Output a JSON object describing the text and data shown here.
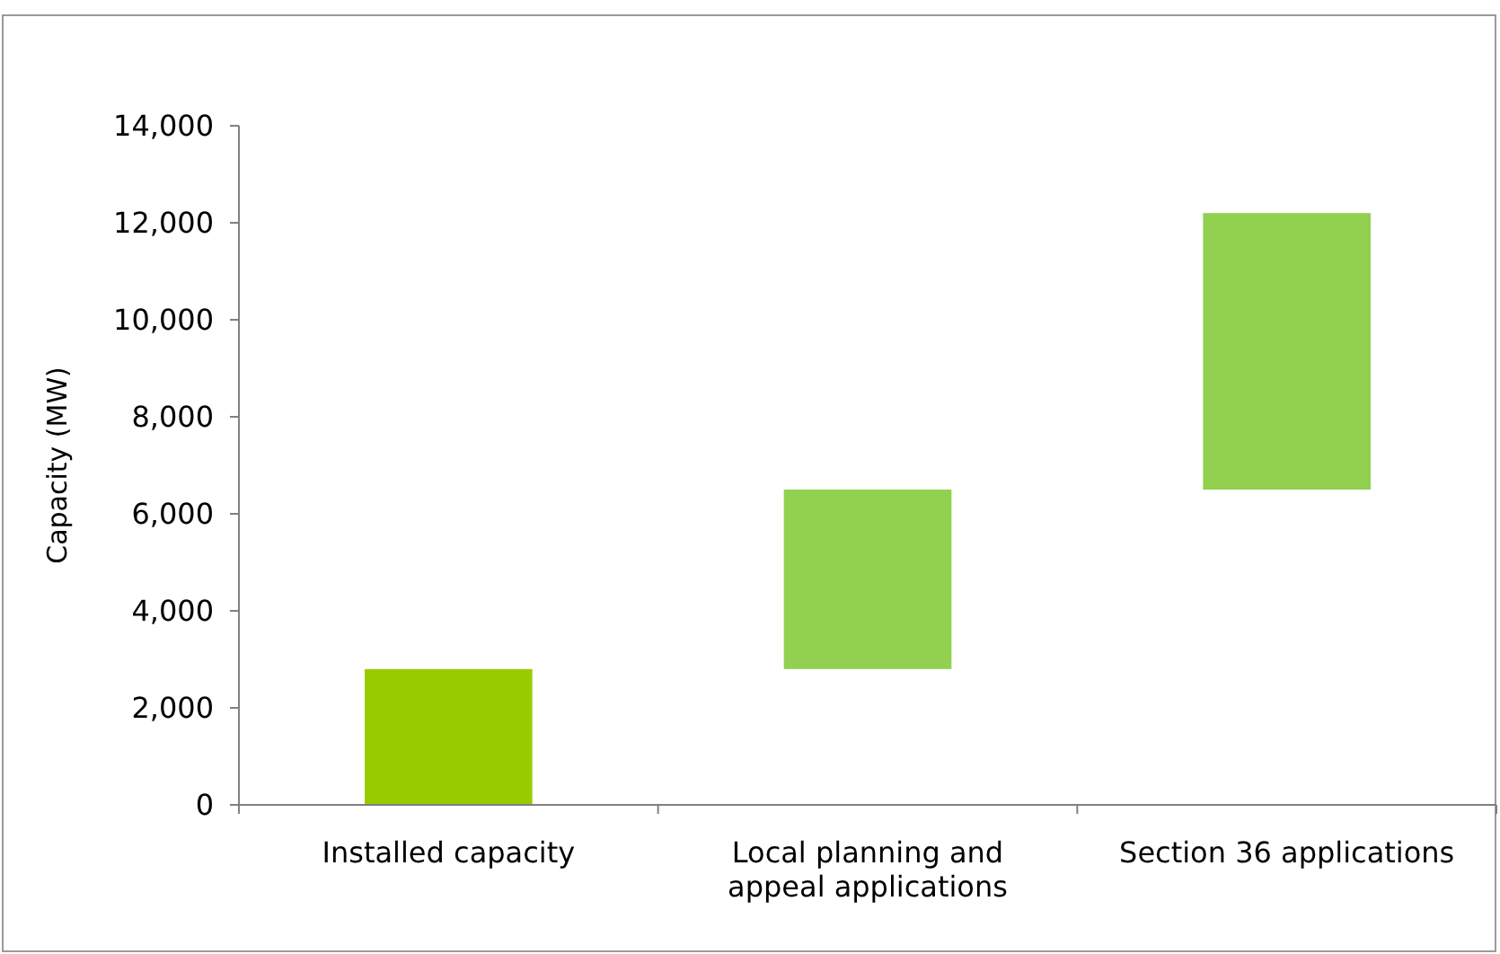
{
  "chart_data": {
    "type": "bar",
    "ylabel": "Capacity (MW)",
    "categories": [
      "Installed capacity",
      "Local planning and appeal applications",
      "Section 36 applications"
    ],
    "base": [
      0,
      2800,
      6500
    ],
    "values": [
      2800,
      3700,
      5700
    ],
    "colors": [
      "#99cc00",
      "#92d050",
      "#92d050"
    ],
    "ylim": [
      0,
      14000
    ],
    "yticks": [
      {
        "value": 0,
        "label": "0"
      },
      {
        "value": 2000,
        "label": "2,000"
      },
      {
        "value": 4000,
        "label": "4,000"
      },
      {
        "value": 6000,
        "label": "6,000"
      },
      {
        "value": 8000,
        "label": "8,000"
      },
      {
        "value": 10000,
        "label": "10,000"
      },
      {
        "value": 12000,
        "label": "12,000"
      },
      {
        "value": 14000,
        "label": "14,000"
      }
    ]
  }
}
